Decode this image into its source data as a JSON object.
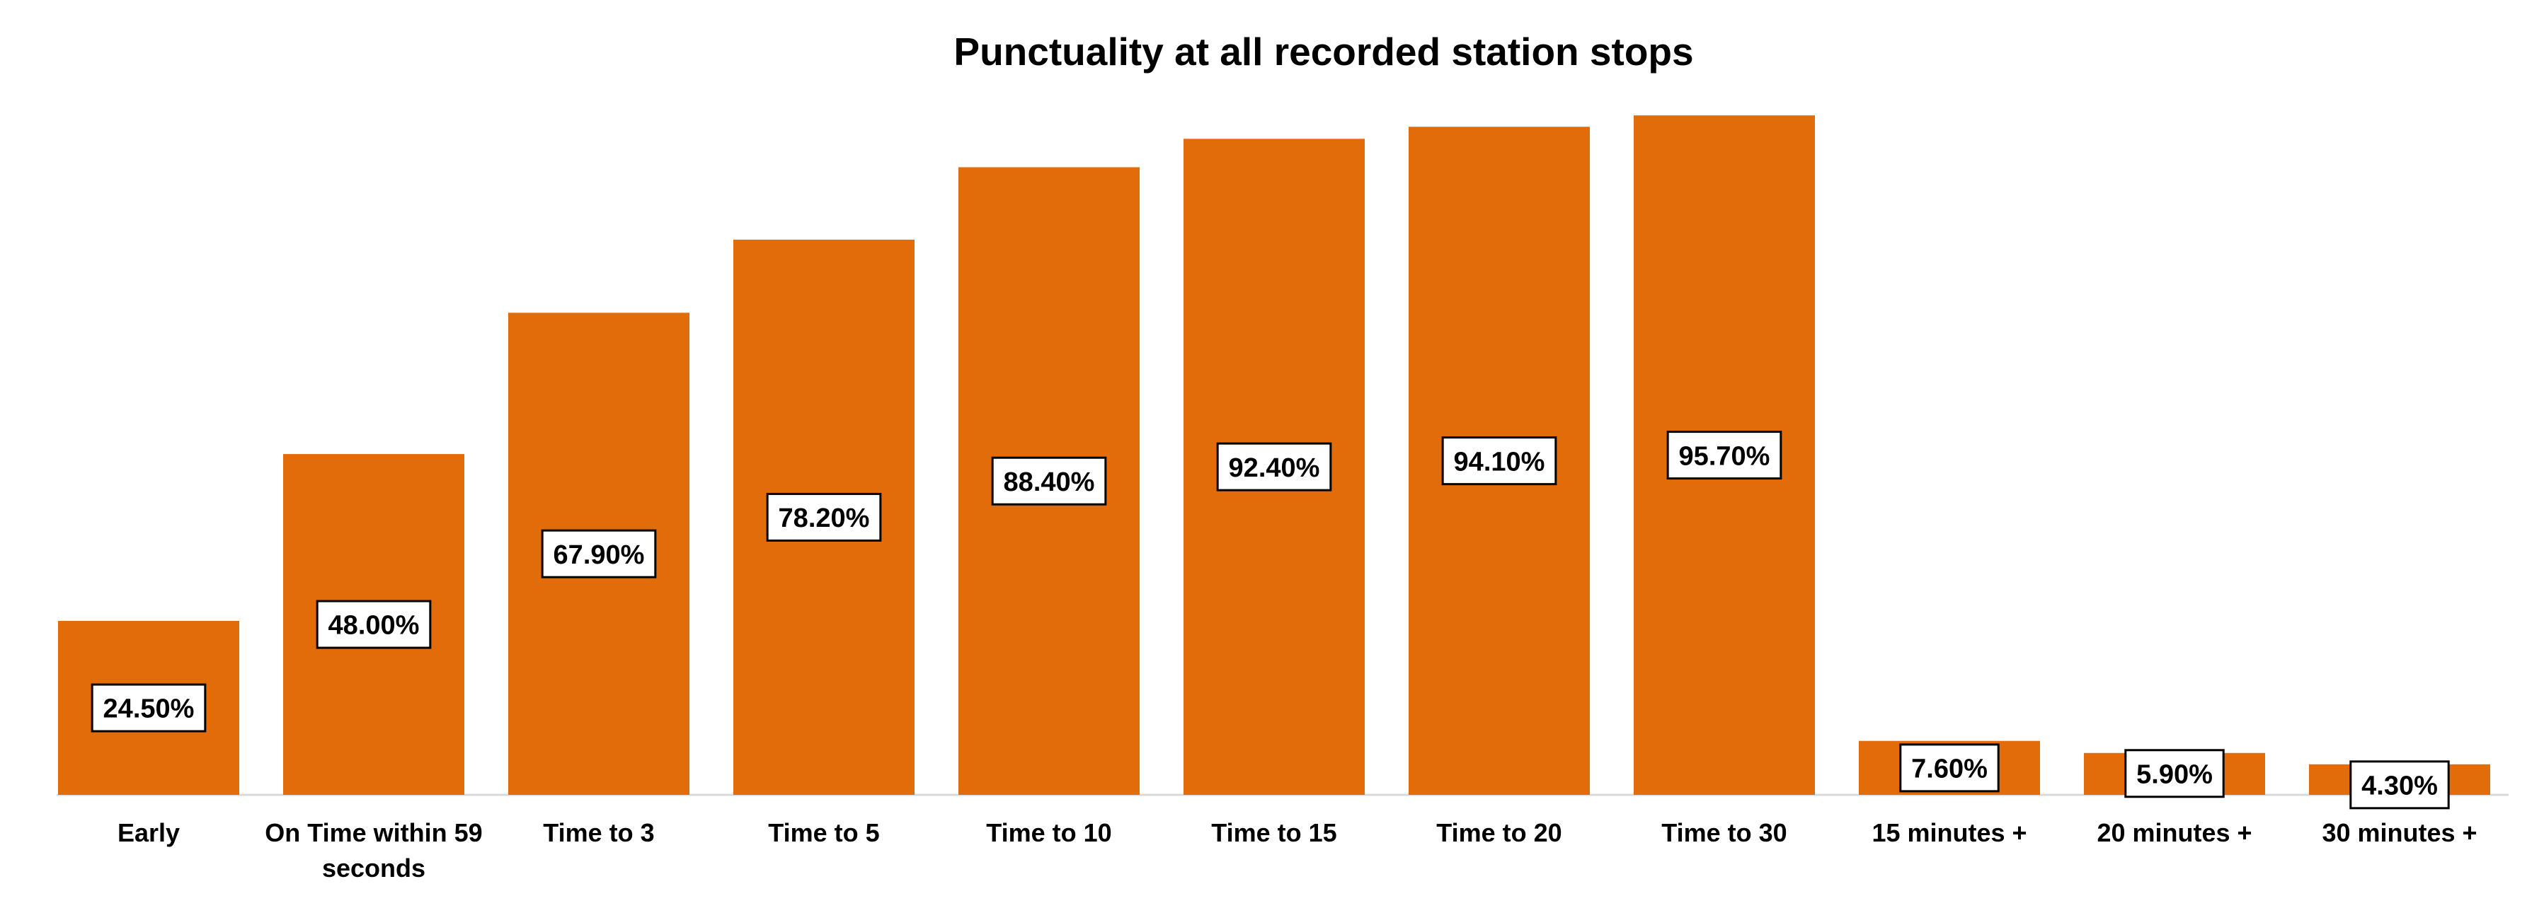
{
  "chart_data": {
    "type": "bar",
    "title": "Punctuality at all recorded station stops",
    "xlabel": "",
    "ylabel": "",
    "ylim": [
      0,
      100
    ],
    "grid": false,
    "legend": "none",
    "bar_color": "#E36C0A",
    "categories": [
      [
        "Early"
      ],
      [
        "On Time within 59",
        "seconds"
      ],
      [
        "Time to 3"
      ],
      [
        "Time to 5"
      ],
      [
        "Time to 10"
      ],
      [
        "Time to 15"
      ],
      [
        "Time to 20"
      ],
      [
        "Time to 30"
      ],
      [
        "15 minutes +"
      ],
      [
        "20 minutes +"
      ],
      [
        "30 minutes +"
      ]
    ],
    "values": [
      24.5,
      48.0,
      67.9,
      78.2,
      88.4,
      92.4,
      94.1,
      95.7,
      7.6,
      5.9,
      4.3
    ],
    "data_labels": [
      "24.50%",
      "48.00%",
      "67.90%",
      "78.20%",
      "88.40%",
      "92.40%",
      "94.10%",
      "95.70%",
      "7.60%",
      "5.90%",
      "4.30%"
    ]
  }
}
